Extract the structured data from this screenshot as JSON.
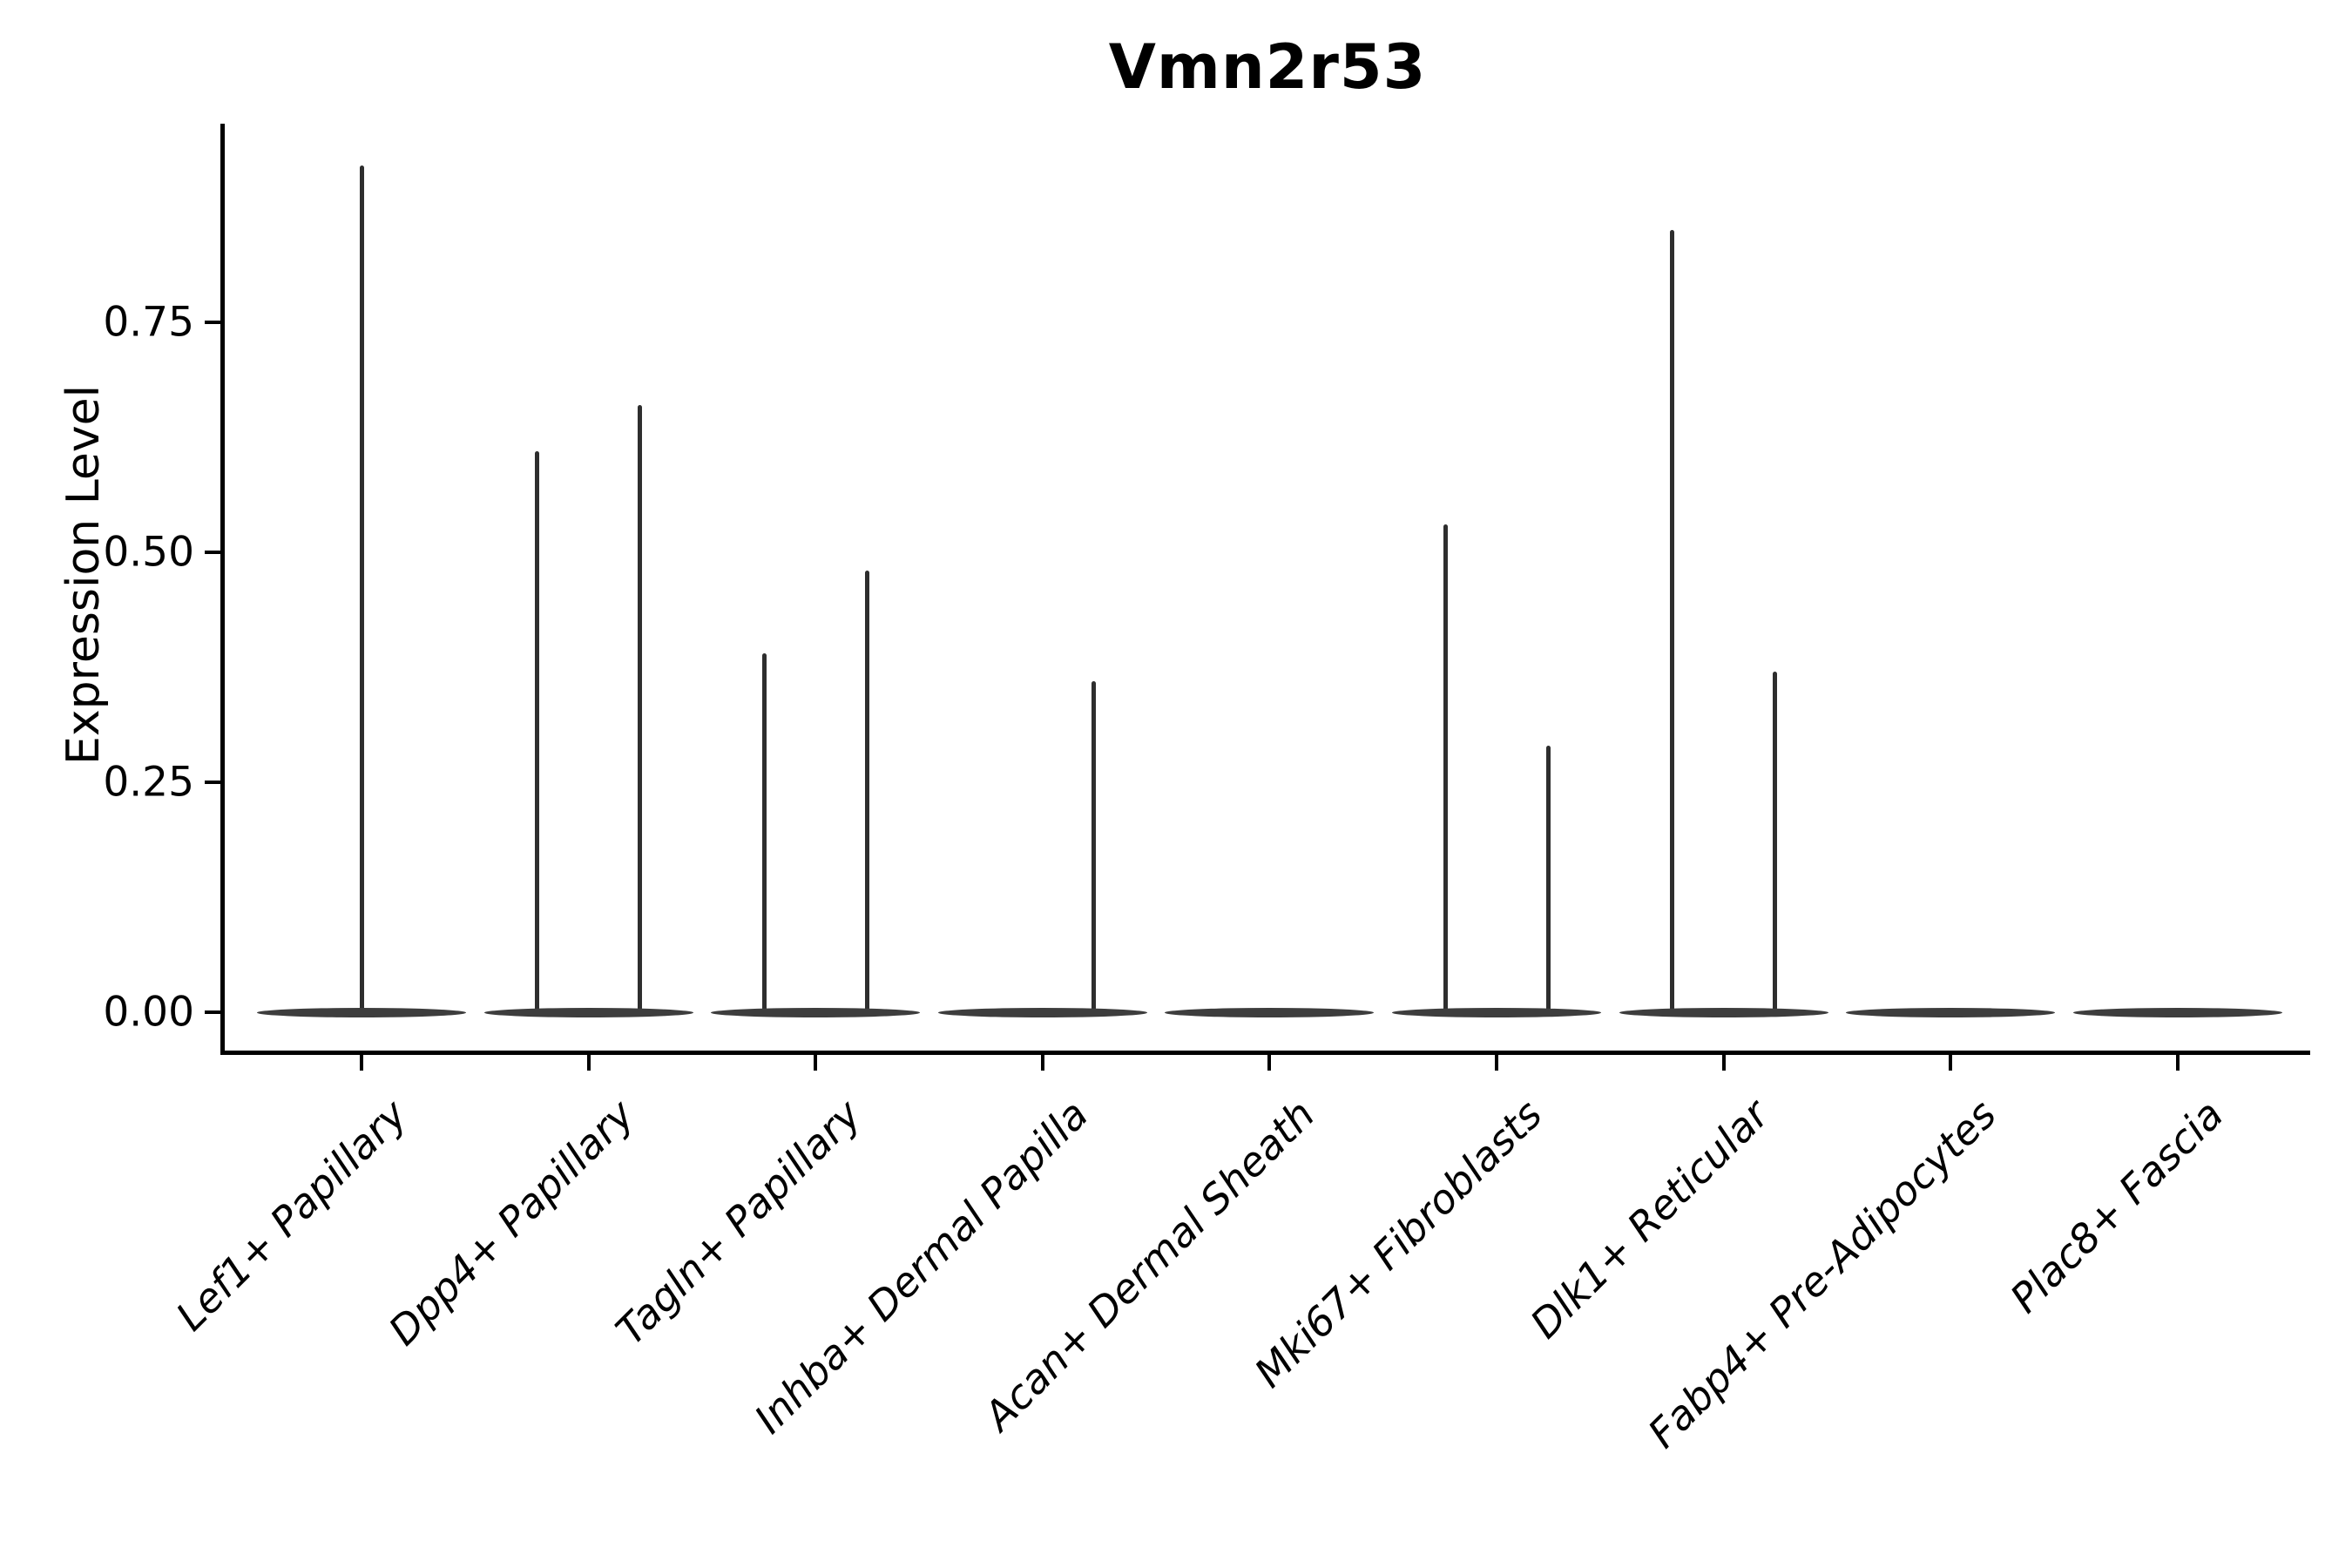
{
  "figure": {
    "title": "Vmn2r53",
    "y_axis": {
      "label": "Expression Level",
      "tick_labels": [
        "0.00",
        "0.25",
        "0.50",
        "0.75"
      ],
      "tick_values": [
        0,
        0.25,
        0.5,
        0.75
      ]
    },
    "x_axis": {
      "categories": [
        "Lef1+ Papillary",
        "Dpp4+ Papillary",
        "Tagln+ Papillary",
        "Inhba+ Dermal Papilla",
        "Acan+ Dermal Sheath",
        "Mki67+ Fibroblasts",
        "Dlk1+ Reticular",
        "Fabp4+ Pre-Adipocytes",
        "Plac8+ Fascia"
      ]
    }
  },
  "chart_data": {
    "type": "violin",
    "title": "Vmn2r53",
    "xlabel": "",
    "ylabel": "Expression Level",
    "ylim": [
      -0.05,
      0.97
    ],
    "y_ticks": [
      0,
      0.25,
      0.5,
      0.75
    ],
    "grid": false,
    "legend": "none",
    "categories": [
      "Lef1+ Papillary",
      "Dpp4+ Papillary",
      "Tagln+ Papillary",
      "Inhba+ Dermal Papilla",
      "Acan+ Dermal Sheath",
      "Mki67+ Fibroblasts",
      "Dlk1+ Reticular",
      "Fabp4+ Pre-Adipocytes",
      "Plac8+ Fascia"
    ],
    "violins": [
      {
        "category": "Lef1+ Papillary",
        "bulk_at_zero": true,
        "spikes": [
          {
            "pos": "center",
            "max": 0.92
          }
        ]
      },
      {
        "category": "Dpp4+ Papillary",
        "bulk_at_zero": true,
        "spikes": [
          {
            "pos": "left",
            "max": 0.61
          },
          {
            "pos": "right",
            "max": 0.66
          }
        ]
      },
      {
        "category": "Tagln+ Papillary",
        "bulk_at_zero": true,
        "spikes": [
          {
            "pos": "left",
            "max": 0.39
          },
          {
            "pos": "right",
            "max": 0.48
          }
        ]
      },
      {
        "category": "Inhba+ Dermal Papilla",
        "bulk_at_zero": true,
        "spikes": [
          {
            "pos": "right",
            "max": 0.36
          }
        ]
      },
      {
        "category": "Acan+ Dermal Sheath",
        "bulk_at_zero": true,
        "spikes": []
      },
      {
        "category": "Mki67+ Fibroblasts",
        "bulk_at_zero": true,
        "spikes": [
          {
            "pos": "left",
            "max": 0.53
          },
          {
            "pos": "right",
            "max": 0.29
          }
        ]
      },
      {
        "category": "Dlk1+ Reticular",
        "bulk_at_zero": true,
        "spikes": [
          {
            "pos": "left",
            "max": 0.85
          },
          {
            "pos": "right",
            "max": 0.37
          }
        ]
      },
      {
        "category": "Fabp4+ Pre-Adipocytes",
        "bulk_at_zero": true,
        "spikes": []
      },
      {
        "category": "Plac8+ Fascia",
        "bulk_at_zero": true,
        "spikes": []
      }
    ],
    "colors": {
      "violin_fill": "#3d3d3d",
      "spike": "#2e2e2e",
      "axis": "#000000",
      "text": "#000000",
      "background": "#ffffff"
    }
  }
}
